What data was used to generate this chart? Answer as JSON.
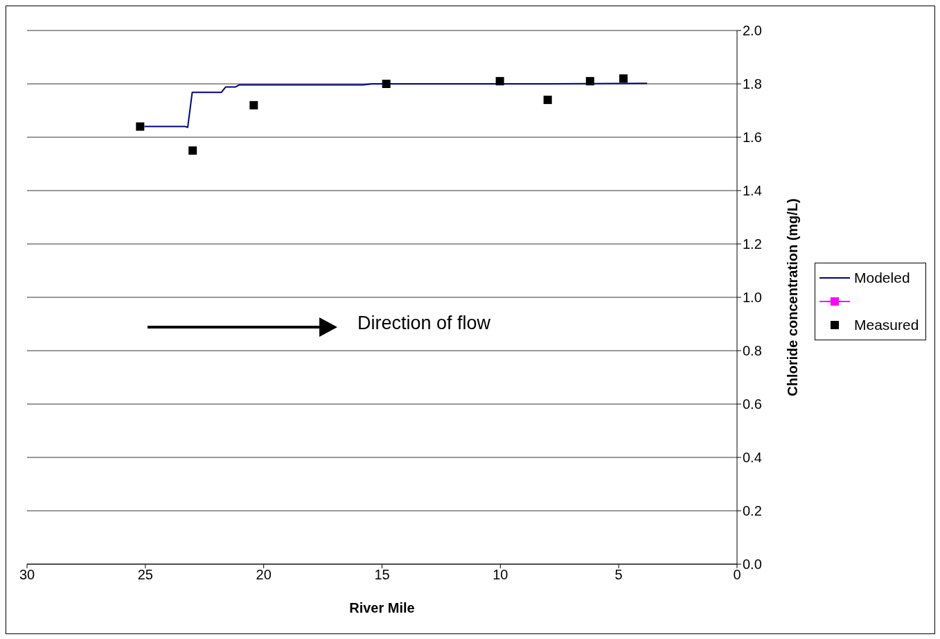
{
  "chart_data": {
    "type": "line",
    "xlabel": "River Mile",
    "ylabel": "Chloride concentration (mg/L)",
    "xlim": [
      30,
      0
    ],
    "xticks": [
      30,
      25,
      20,
      15,
      10,
      5,
      0
    ],
    "ylim": [
      0,
      2
    ],
    "yticks": [
      {
        "value": 0,
        "label": "0.0"
      },
      {
        "value": 0.2,
        "label": "0.2"
      },
      {
        "value": 0.4,
        "label": "0.4"
      },
      {
        "value": 0.6,
        "label": "0.6"
      },
      {
        "value": 0.8,
        "label": "0.8"
      },
      {
        "value": 1,
        "label": "1.0"
      },
      {
        "value": 1.2,
        "label": "1.2"
      },
      {
        "value": 1.4,
        "label": "1.4"
      },
      {
        "value": 1.6,
        "label": "1.6"
      },
      {
        "value": 1.8,
        "label": "1.8"
      },
      {
        "value": 2,
        "label": "2.0"
      }
    ],
    "grid": "y",
    "legend": "right",
    "annotations": [
      "Direction of flow"
    ],
    "series": [
      {
        "name": "Modeled",
        "marker": "none",
        "color": "#000080",
        "x": [
          25.04,
          24.4,
          24.16,
          23.31,
          23.21,
          23.02,
          21.79,
          21.61,
          21.2,
          21.04,
          15.81,
          15.42,
          7.91,
          3.8
        ],
        "values": [
          1.64,
          1.64,
          1.64,
          1.64,
          1.637,
          1.768,
          1.768,
          1.788,
          1.788,
          1.796,
          1.796,
          1.8,
          1.8,
          1.802
        ]
      },
      {
        "name": "Measured",
        "type": "scatter",
        "marker": "square",
        "color": "#000000",
        "x": [
          25.22,
          23.0,
          20.42,
          14.82,
          10.02,
          8.0,
          6.21,
          4.8
        ],
        "values": [
          1.64,
          1.55,
          1.72,
          1.8,
          1.81,
          1.74,
          1.81,
          1.82
        ]
      }
    ]
  }
}
